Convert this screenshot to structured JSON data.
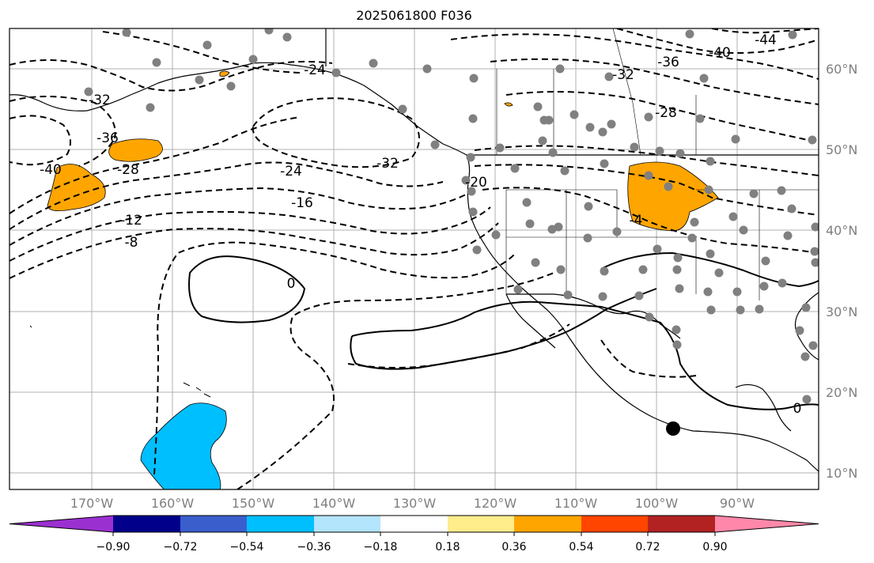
{
  "title": "2025061800 F036",
  "lat_labels": [
    "60°N",
    "50°N",
    "40°N",
    "30°N",
    "20°N",
    "10°N"
  ],
  "lon_labels": [
    "170°W",
    "160°W",
    "150°W",
    "140°W",
    "130°W",
    "120°W",
    "110°W",
    "100°W",
    "90°W"
  ],
  "contour_labels": [
    "-44",
    "-40",
    "-40",
    "-36",
    "-36",
    "-32",
    "-32",
    "-32",
    "-28",
    "-28",
    "-24",
    "-24",
    "-20",
    "-16",
    "-12",
    "-8",
    "-4",
    "0",
    "0"
  ],
  "colorbar": {
    "colors": [
      "#9b30d0",
      "#00008b",
      "#3a5fcd",
      "#00bfff",
      "#b3e5fc",
      "#ffffff",
      "#ffec8b",
      "#ffa500",
      "#ff4500",
      "#b22222",
      "#ff88aa"
    ],
    "labels": [
      "−0.90",
      "−0.72",
      "−0.54",
      "−0.36",
      "−0.18",
      "0.18",
      "0.36",
      "0.54",
      "0.72",
      "0.90"
    ]
  },
  "colors": {
    "orange_fill": "#ffa500",
    "blue_fill": "#00bfff",
    "station": "#808080",
    "grid": "#b0b0b0"
  }
}
